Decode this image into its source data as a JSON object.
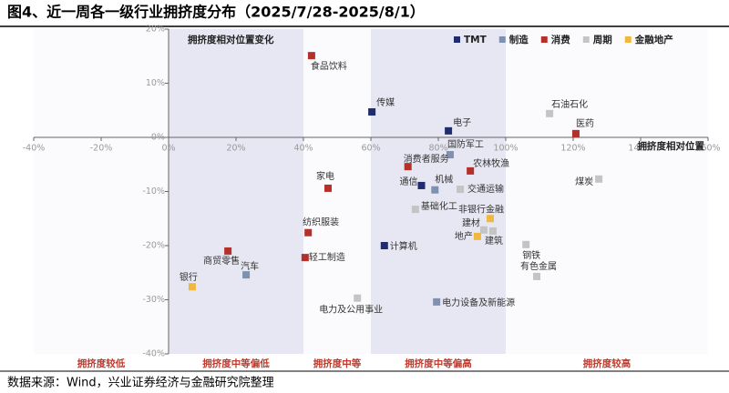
{
  "title": "图4、近一周各一级行业拥挤度分布（2025/7/28-2025/8/1）",
  "source": "数据来源：Wind，兴业证券经济与金融研究院整理",
  "chart_data": {
    "type": "scatter",
    "annotation": "拥挤度相对位置变化",
    "x_label": "拥挤度相对位置",
    "xlim": [
      -40,
      160
    ],
    "ylim": [
      -40,
      20
    ],
    "xticks": [
      {
        "value": -40,
        "label": "-40%"
      },
      {
        "value": -20,
        "label": "-20%"
      },
      {
        "value": 0,
        "label": "0%"
      },
      {
        "value": 20,
        "label": "20%"
      },
      {
        "value": 40,
        "label": "40%"
      },
      {
        "value": 60,
        "label": "60%"
      },
      {
        "value": 80,
        "label": "80%"
      },
      {
        "value": 100,
        "label": "100%"
      },
      {
        "value": 120,
        "label": "120%"
      },
      {
        "value": 140,
        "label": "140%"
      },
      {
        "value": 160,
        "label": "160%"
      }
    ],
    "yticks": [
      {
        "value": -40,
        "label": "-40%"
      },
      {
        "value": -30,
        "label": "-30%"
      },
      {
        "value": -20,
        "label": "-20%"
      },
      {
        "value": -10,
        "label": "-10%"
      },
      {
        "value": 0,
        "label": "0%"
      },
      {
        "value": 10,
        "label": "10%"
      },
      {
        "value": 20,
        "label": "20%"
      }
    ],
    "zones": [
      {
        "label": "拥挤度较低",
        "range": [
          -40,
          0
        ]
      },
      {
        "label": "拥挤度中等偏低",
        "range": [
          0,
          40
        ]
      },
      {
        "label": "拥挤度中等",
        "range": [
          40,
          60
        ]
      },
      {
        "label": "拥挤度中等偏高",
        "range": [
          60,
          100
        ]
      },
      {
        "label": "拥挤度较高",
        "range": [
          100,
          160
        ]
      }
    ],
    "series": [
      {
        "name": "TMT",
        "color": "#1f2d6e",
        "labels": [
          "传媒",
          "电子",
          "通信",
          "计算机"
        ],
        "x": [
          60.3,
          83,
          75,
          64
        ],
        "values": [
          4.7,
          1.2,
          -8.9,
          -20
        ]
      },
      {
        "name": "制造",
        "color": "#8090b0",
        "labels": [
          "国防军工",
          "机械",
          "汽车",
          "电力设备及新能源"
        ],
        "x": [
          83.5,
          79,
          23,
          79.5
        ],
        "values": [
          -3.2,
          -9.7,
          -25.4,
          -30.4
        ]
      },
      {
        "name": "消费",
        "color": "#b5302a",
        "labels": [
          "食品饮料",
          "医药",
          "消费者服务",
          "农林牧渔",
          "家电",
          "纺织服装",
          "轻工制造",
          "商贸零售"
        ],
        "x": [
          42.4,
          120.8,
          71,
          89.5,
          47.3,
          41.4,
          40.5,
          17.6
        ],
        "values": [
          15.1,
          0.7,
          -5.4,
          -6.2,
          -9.4,
          -17.6,
          -22.2,
          -21
        ]
      },
      {
        "name": "周期",
        "color": "#c4c4c4",
        "labels": [
          "石油石化",
          "交通运输",
          "煤炭",
          "基础化工",
          "建材",
          "建筑",
          "钢铁",
          "有色金属",
          "电力及公用事业"
        ],
        "x": [
          113,
          86.5,
          127.6,
          73.2,
          93.5,
          96.2,
          106,
          109.2,
          56
        ],
        "values": [
          4.4,
          -9.6,
          -7.7,
          -13.3,
          -17.1,
          -17.3,
          -19.8,
          -25.7,
          -29.7
        ]
      },
      {
        "name": "金融地产",
        "color": "#f0b840",
        "labels": [
          "非银行金融",
          "地产",
          "银行"
        ],
        "x": [
          95.4,
          91.6,
          7
        ],
        "values": [
          -15,
          -18.3,
          -27.6
        ]
      }
    ]
  }
}
